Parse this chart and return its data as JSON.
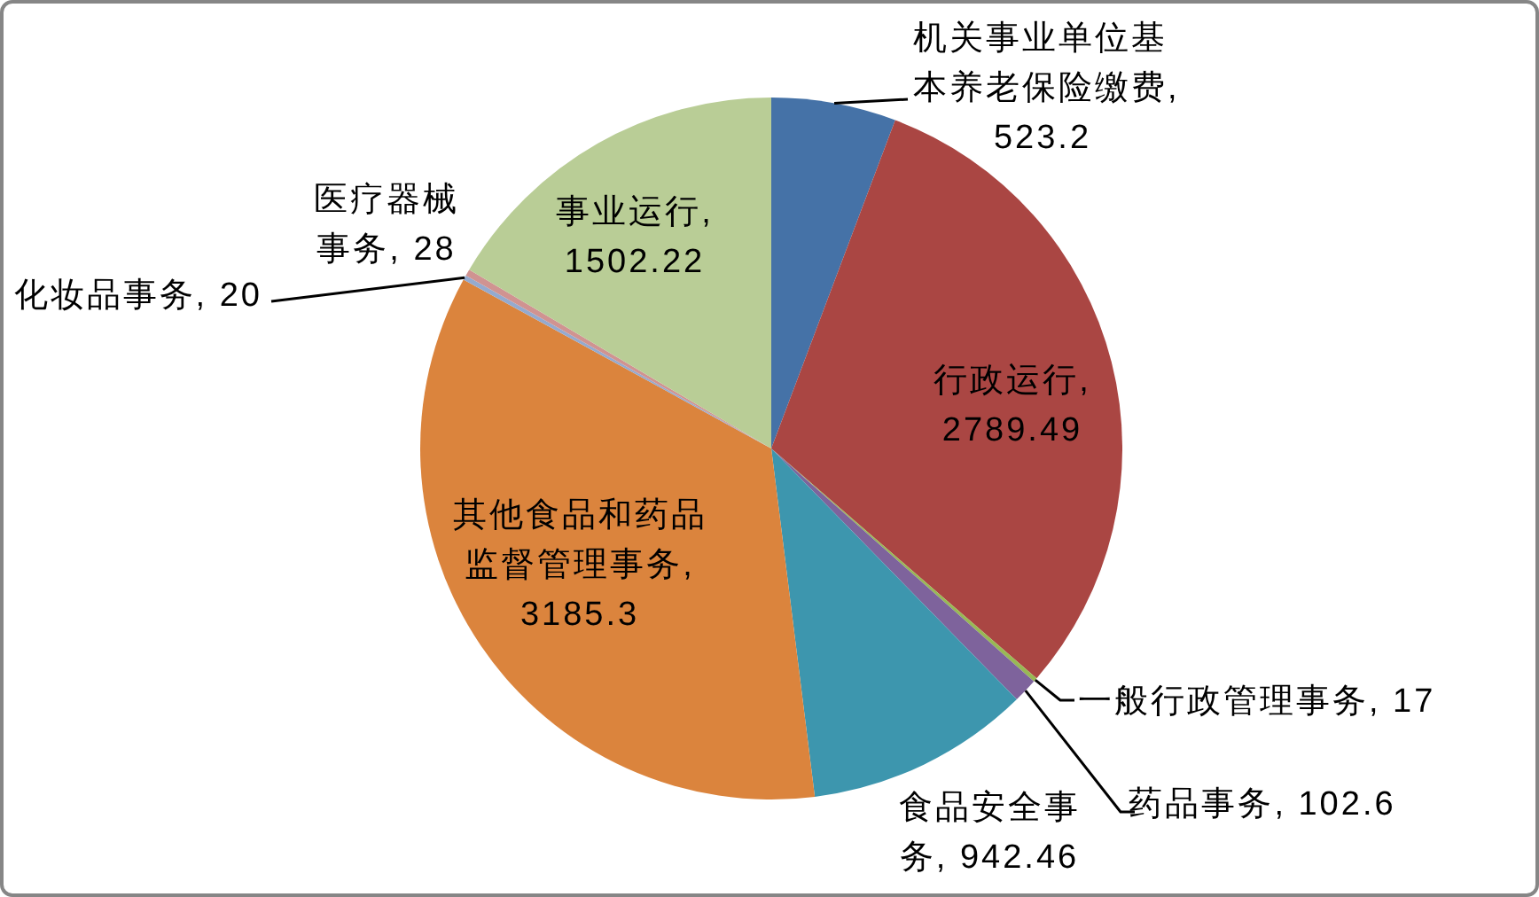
{
  "chart_data": {
    "type": "pie",
    "categories": [
      "机关事业单位基本养老保险缴费",
      "行政运行",
      "一般行政管理事务",
      "药品事务",
      "食品安全事务",
      "其他食品和药品监督管理事务",
      "化妆品事务",
      "医疗器械事务",
      "事业运行"
    ],
    "values": [
      523.2,
      2789.49,
      17,
      102.6,
      942.46,
      3185.3,
      20,
      28,
      1502.22
    ],
    "value_labels": [
      ", 523.2",
      ", 2789.49",
      ", 17",
      ", 102.6",
      ", 942.46",
      ", 3185.3",
      ", 20",
      ", 28",
      ", 1502.22"
    ],
    "colors": [
      "#4572a7",
      "#aa4643",
      "#98b954",
      "#7e639c",
      "#3d96ae",
      "#db843d",
      "#94aacf",
      "#d09391",
      "#b9cd96"
    ]
  }
}
